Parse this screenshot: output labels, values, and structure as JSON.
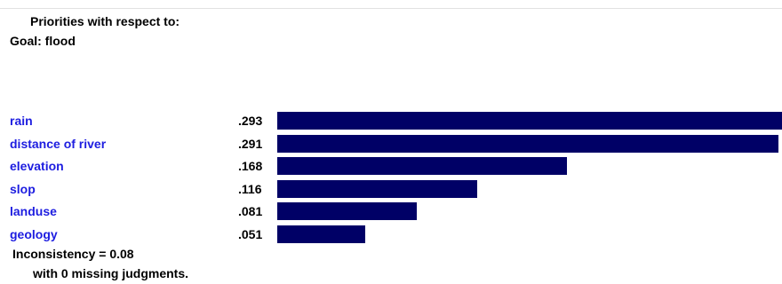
{
  "header": {
    "title": "Priorities with respect to:",
    "goal": "Goal: flood"
  },
  "colors": {
    "label": "#1d1de0",
    "bar": "#000066"
  },
  "chart_data": {
    "type": "bar",
    "orientation": "horizontal",
    "categories": [
      "rain",
      "distance of river",
      "elevation",
      "slop",
      "landuse",
      "geology"
    ],
    "values": [
      0.293,
      0.291,
      0.168,
      0.116,
      0.081,
      0.051
    ],
    "value_labels": [
      ".293",
      ".291",
      ".168",
      ".116",
      ".081",
      ".051"
    ],
    "xlim": [
      0,
      0.293
    ]
  },
  "footer": {
    "inconsistency": "Inconsistency = 0.08",
    "missing": "with 0  missing judgments."
  }
}
